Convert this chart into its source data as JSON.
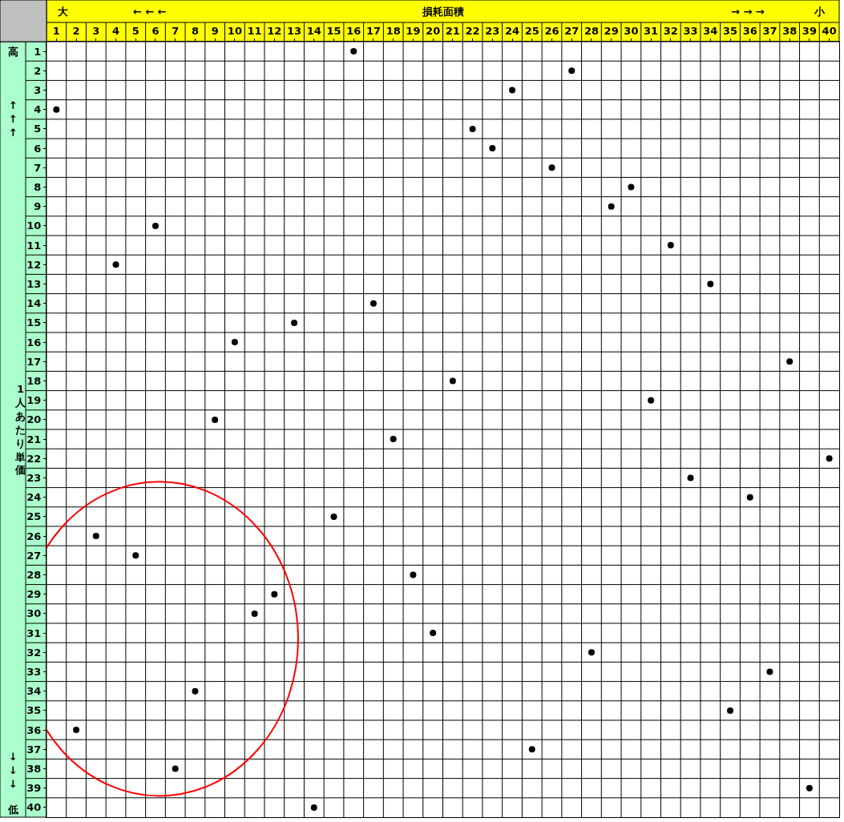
{
  "chart_data": {
    "type": "scatter",
    "xlabel": "損耗面積",
    "ylabel": "1人あたり単価",
    "annotations": [
      "大",
      "← ← ←",
      "→ → →",
      "小",
      "高",
      "↑ ↑ ↑",
      "↓ ↓ ↓",
      "低"
    ],
    "x": [
      16,
      27,
      24,
      1,
      22,
      23,
      26,
      30,
      29,
      6,
      32,
      4,
      34,
      17,
      13,
      10,
      38,
      21,
      31,
      9,
      18,
      40,
      33,
      36,
      15,
      3,
      5,
      19,
      12,
      11,
      20,
      28,
      37,
      8,
      35,
      2,
      25,
      7,
      39,
      14
    ],
    "values": [
      1,
      2,
      3,
      4,
      5,
      6,
      7,
      8,
      9,
      10,
      11,
      12,
      13,
      14,
      15,
      16,
      17,
      18,
      19,
      20,
      21,
      22,
      23,
      24,
      25,
      26,
      27,
      28,
      29,
      30,
      31,
      32,
      33,
      34,
      35,
      36,
      37,
      38,
      39,
      40
    ],
    "color": "#000000",
    "marker": "circle",
    "grid": true,
    "xlim": [
      0.5,
      40.5
    ],
    "ylim": [
      40.5,
      0.5
    ],
    "xticks": [
      1,
      2,
      3,
      4,
      5,
      6,
      7,
      8,
      9,
      10,
      11,
      12,
      13,
      14,
      15,
      16,
      17,
      18,
      19,
      20,
      21,
      22,
      23,
      24,
      25,
      26,
      27,
      28,
      29,
      30,
      31,
      32,
      33,
      34,
      35,
      36,
      37,
      38,
      39,
      40
    ],
    "yticks": [
      1,
      2,
      3,
      4,
      5,
      6,
      7,
      8,
      9,
      10,
      11,
      12,
      13,
      14,
      15,
      16,
      17,
      18,
      19,
      20,
      21,
      22,
      23,
      24,
      25,
      26,
      27,
      28,
      29,
      30,
      31,
      32,
      33,
      34,
      35,
      36,
      37,
      38,
      39,
      40
    ]
  }
}
